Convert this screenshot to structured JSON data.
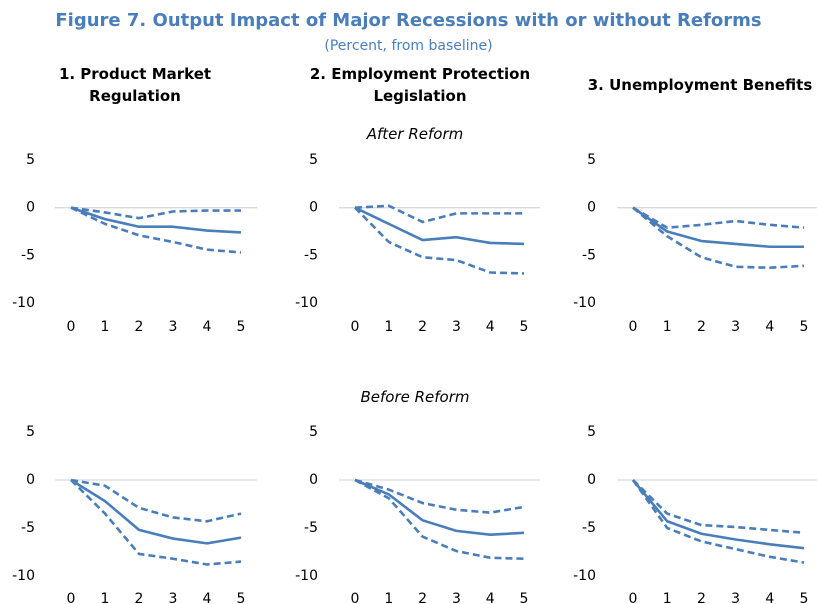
{
  "title": "Figure 7. Output Impact of Major Recessions with or without Reforms",
  "subtitle": "(Percent, from baseline)",
  "panel_titles": [
    "1. Product Market Regulation",
    "2. Employment Protection Legislation",
    "3. Unemployment Benefits"
  ],
  "row_labels": [
    "After Reform",
    "Before Reform"
  ],
  "chart_data": [
    {
      "type": "line",
      "x": [
        0,
        1,
        2,
        3,
        4,
        5
      ],
      "xticks": [
        0,
        1,
        2,
        3,
        4,
        5
      ],
      "xlim": [
        0,
        5
      ],
      "ylim": [
        -10,
        5
      ],
      "yticks": [
        5,
        0,
        -5,
        -10
      ],
      "series": [
        {
          "color": "#4a7ebb",
          "style": "solid",
          "values": [
            0,
            -1.2,
            -2,
            -2,
            -2.4,
            -2.6
          ]
        },
        {
          "color": "#4a7ebb",
          "style": "dashed",
          "values": [
            0,
            -0.5,
            -1.1,
            -0.4,
            -0.3,
            -0.3
          ]
        },
        {
          "color": "#4a7ebb",
          "style": "dashed",
          "values": [
            0,
            -1.7,
            -2.9,
            -3.6,
            -4.4,
            -4.7
          ]
        }
      ]
    },
    {
      "type": "line",
      "x": [
        0,
        1,
        2,
        3,
        4,
        5
      ],
      "xticks": [
        0,
        1,
        2,
        3,
        4,
        5
      ],
      "xlim": [
        0,
        5
      ],
      "ylim": [
        -10,
        5
      ],
      "yticks": [
        5,
        0,
        -5,
        -10
      ],
      "series": [
        {
          "color": "#4a7ebb",
          "style": "solid",
          "values": [
            0,
            -1.7,
            -3.4,
            -3.1,
            -3.7,
            -3.8
          ]
        },
        {
          "color": "#4a7ebb",
          "style": "dashed",
          "values": [
            0,
            0.2,
            -1.5,
            -0.6,
            -0.6,
            -0.6
          ]
        },
        {
          "color": "#4a7ebb",
          "style": "dashed",
          "values": [
            0,
            -3.6,
            -5.2,
            -5.5,
            -6.8,
            -6.9
          ]
        }
      ]
    },
    {
      "type": "line",
      "x": [
        0,
        1,
        2,
        3,
        4,
        5
      ],
      "xticks": [
        0,
        1,
        2,
        3,
        4,
        5
      ],
      "xlim": [
        0,
        5
      ],
      "ylim": [
        -10,
        5
      ],
      "yticks": [
        5,
        0,
        -5,
        -10
      ],
      "series": [
        {
          "color": "#4a7ebb",
          "style": "solid",
          "values": [
            0,
            -2.5,
            -3.5,
            -3.8,
            -4.1,
            -4.1
          ]
        },
        {
          "color": "#4a7ebb",
          "style": "dashed",
          "values": [
            0,
            -2.1,
            -1.8,
            -1.4,
            -1.8,
            -2.1
          ]
        },
        {
          "color": "#4a7ebb",
          "style": "dashed",
          "values": [
            0,
            -3,
            -5.2,
            -6.2,
            -6.3,
            -6.1
          ]
        }
      ]
    },
    {
      "type": "line",
      "x": [
        0,
        1,
        2,
        3,
        4,
        5
      ],
      "xticks": [
        0,
        1,
        2,
        3,
        4,
        5
      ],
      "xlim": [
        0,
        5
      ],
      "ylim": [
        -10,
        5
      ],
      "yticks": [
        5,
        0,
        -5,
        -10
      ],
      "series": [
        {
          "color": "#4a7ebb",
          "style": "solid",
          "values": [
            0,
            -2.2,
            -5.2,
            -6.1,
            -6.6,
            -6
          ]
        },
        {
          "color": "#4a7ebb",
          "style": "dashed",
          "values": [
            0,
            -0.6,
            -2.9,
            -3.9,
            -4.3,
            -3.5
          ]
        },
        {
          "color": "#4a7ebb",
          "style": "dashed",
          "values": [
            0,
            -3.5,
            -7.7,
            -8.2,
            -8.8,
            -8.5
          ]
        }
      ]
    },
    {
      "type": "line",
      "x": [
        0,
        1,
        2,
        3,
        4,
        5
      ],
      "xticks": [
        0,
        1,
        2,
        3,
        4,
        5
      ],
      "xlim": [
        0,
        5
      ],
      "ylim": [
        -10,
        5
      ],
      "yticks": [
        5,
        0,
        -5,
        -10
      ],
      "series": [
        {
          "color": "#4a7ebb",
          "style": "solid",
          "values": [
            0,
            -1.5,
            -4.2,
            -5.3,
            -5.7,
            -5.5
          ]
        },
        {
          "color": "#4a7ebb",
          "style": "dashed",
          "values": [
            0,
            -1,
            -2.4,
            -3.1,
            -3.4,
            -2.8
          ]
        },
        {
          "color": "#4a7ebb",
          "style": "dashed",
          "values": [
            0,
            -1.9,
            -5.9,
            -7.4,
            -8.1,
            -8.2
          ]
        }
      ]
    },
    {
      "type": "line",
      "x": [
        0,
        1,
        2,
        3,
        4,
        5
      ],
      "xticks": [
        0,
        1,
        2,
        3,
        4,
        5
      ],
      "xlim": [
        0,
        5
      ],
      "ylim": [
        -10,
        5
      ],
      "yticks": [
        5,
        0,
        -5,
        -10
      ],
      "series": [
        {
          "color": "#4a7ebb",
          "style": "solid",
          "values": [
            0,
            -4.3,
            -5.6,
            -6.2,
            -6.7,
            -7.1
          ]
        },
        {
          "color": "#4a7ebb",
          "style": "dashed",
          "values": [
            0,
            -3.5,
            -4.7,
            -4.9,
            -5.2,
            -5.5
          ]
        },
        {
          "color": "#4a7ebb",
          "style": "dashed",
          "values": [
            0,
            -5,
            -6.4,
            -7.2,
            -8,
            -8.6
          ]
        }
      ]
    }
  ]
}
